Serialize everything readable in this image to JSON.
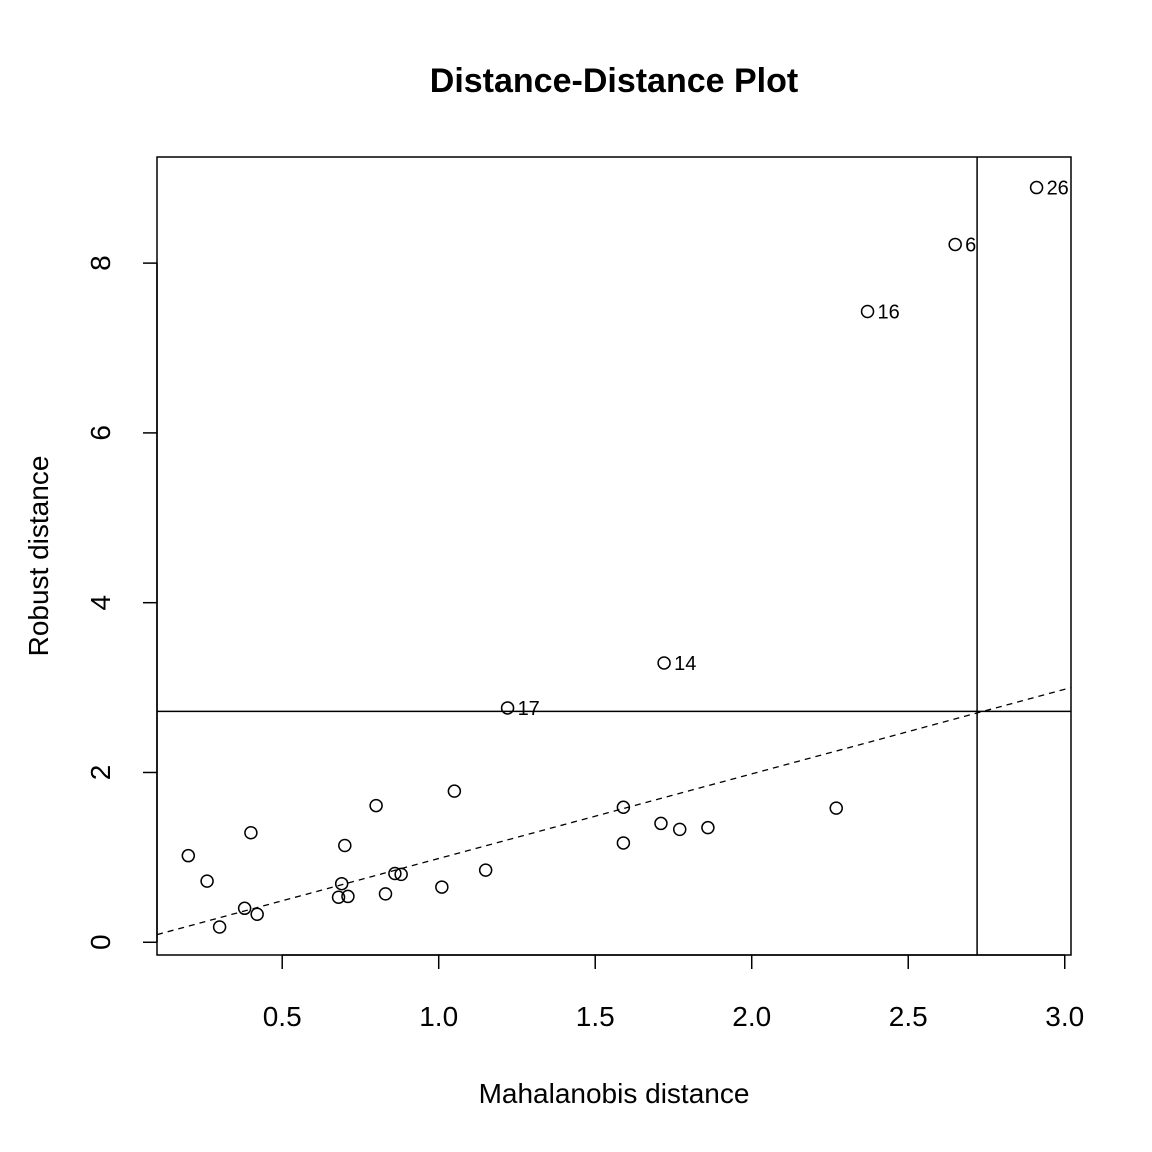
{
  "chart_data": {
    "type": "scatter",
    "title": "Distance-Distance Plot",
    "xlabel": "Mahalanobis distance",
    "ylabel": "Robust distance",
    "xlim": [
      0.1,
      3.02
    ],
    "ylim": [
      -0.15,
      9.25
    ],
    "xticks": [
      0.5,
      1.0,
      1.5,
      2.0,
      2.5,
      3.0
    ],
    "xtick_labels": [
      "0.5",
      "1.0",
      "1.5",
      "2.0",
      "2.5",
      "3.0"
    ],
    "yticks": [
      0,
      2,
      4,
      6,
      8
    ],
    "ytick_labels": [
      "0",
      "2",
      "4",
      "6",
      "8"
    ],
    "grid": false,
    "cutoff": 2.72,
    "reference_line": {
      "x": [
        0.1,
        3.02
      ],
      "y": [
        0.09,
        3.0
      ],
      "style": "dashed"
    },
    "points": [
      {
        "x": 0.2,
        "y": 1.02
      },
      {
        "x": 0.26,
        "y": 0.72
      },
      {
        "x": 0.3,
        "y": 0.18
      },
      {
        "x": 0.38,
        "y": 0.4
      },
      {
        "x": 0.4,
        "y": 1.29
      },
      {
        "x": 0.42,
        "y": 0.33
      },
      {
        "x": 0.68,
        "y": 0.53
      },
      {
        "x": 0.69,
        "y": 0.69
      },
      {
        "x": 0.7,
        "y": 1.14
      },
      {
        "x": 0.71,
        "y": 0.54
      },
      {
        "x": 0.8,
        "y": 1.61
      },
      {
        "x": 0.83,
        "y": 0.57
      },
      {
        "x": 0.86,
        "y": 0.81
      },
      {
        "x": 0.88,
        "y": 0.8
      },
      {
        "x": 1.01,
        "y": 0.65
      },
      {
        "x": 1.05,
        "y": 1.78
      },
      {
        "x": 1.15,
        "y": 0.85
      },
      {
        "x": 1.22,
        "y": 2.76,
        "label": "17"
      },
      {
        "x": 1.59,
        "y": 1.59
      },
      {
        "x": 1.59,
        "y": 1.17
      },
      {
        "x": 1.71,
        "y": 1.4
      },
      {
        "x": 1.72,
        "y": 3.29,
        "label": "14"
      },
      {
        "x": 1.77,
        "y": 1.33
      },
      {
        "x": 1.86,
        "y": 1.35
      },
      {
        "x": 2.27,
        "y": 1.58
      },
      {
        "x": 2.37,
        "y": 7.43,
        "label": "16"
      },
      {
        "x": 2.65,
        "y": 8.22,
        "label": "6"
      },
      {
        "x": 2.91,
        "y": 8.89,
        "label": "26"
      }
    ]
  }
}
